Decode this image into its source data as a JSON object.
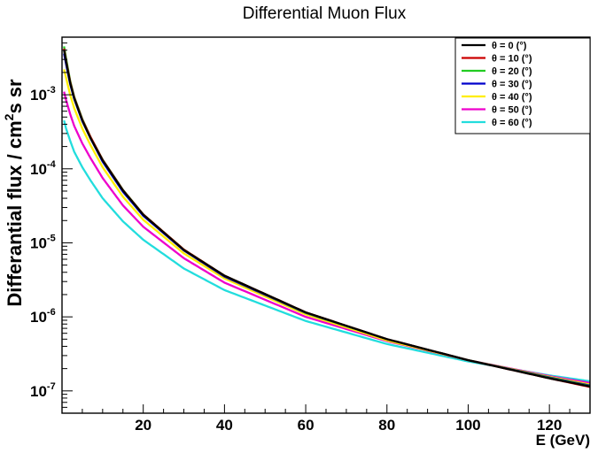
{
  "chart_data": {
    "type": "line",
    "title": "Differential Muon Flux",
    "xlabel": "E (GeV)",
    "ylabel": "Differantial flux / cm²s sr",
    "ylabel_parts": {
      "base": "Differantial flux / cm",
      "sup": "2",
      "tail": "s sr"
    },
    "xlim": [
      0,
      130
    ],
    "ylim": [
      5e-08,
      0.006
    ],
    "yscale": "log",
    "grid": false,
    "legend_position": "top-right",
    "x_ticks": [
      "20",
      "40",
      "60",
      "80",
      "100",
      "120"
    ],
    "y_ticks": [
      {
        "base": "10",
        "exp": "-3"
      },
      {
        "base": "10",
        "exp": "-4"
      },
      {
        "base": "10",
        "exp": "-5"
      },
      {
        "base": "10",
        "exp": "-6"
      },
      {
        "base": "10",
        "exp": "-7"
      }
    ],
    "x": [
      0.5,
      1,
      2,
      3,
      5,
      7,
      10,
      15,
      20,
      30,
      40,
      60,
      80,
      100,
      120,
      130
    ],
    "series": [
      {
        "name": "θ = 0 (°)",
        "color": "#000000",
        "values": [
          0.004,
          0.0028,
          0.00145,
          0.0009,
          0.00045,
          0.00026,
          0.00013,
          5.1e-05,
          2.4e-05,
          8e-06,
          3.6e-06,
          1.15e-06,
          5e-07,
          2.6e-07,
          1.48e-07,
          1.15e-07
        ]
      },
      {
        "name": "θ = 10 (°)",
        "color": "#cc0000",
        "values": [
          0.0042,
          0.0029,
          0.0015,
          0.00092,
          0.00046,
          0.00027,
          0.000132,
          5.15e-05,
          2.42e-05,
          8.1e-06,
          3.6e-06,
          1.15e-06,
          5e-07,
          2.6e-07,
          1.48e-07,
          1.13e-07
        ]
      },
      {
        "name": "θ = 20 (°)",
        "color": "#22cc22",
        "values": [
          0.0045,
          0.0031,
          0.00155,
          0.00094,
          0.00047,
          0.00027,
          0.000133,
          5.2e-05,
          2.42e-05,
          8.1e-06,
          3.6e-06,
          1.14e-06,
          5e-07,
          2.6e-07,
          1.5e-07,
          1.16e-07
        ]
      },
      {
        "name": "θ = 30 (°)",
        "color": "#0000cc",
        "values": [
          0.0036,
          0.0026,
          0.0014,
          0.00088,
          0.00044,
          0.00026,
          0.000125,
          4.9e-05,
          2.32e-05,
          7.9e-06,
          3.5e-06,
          1.13e-06,
          5e-07,
          2.6e-07,
          1.52e-07,
          1.18e-07
        ]
      },
      {
        "name": "θ = 40 (°)",
        "color": "#ffee00",
        "values": [
          0.0022,
          0.0017,
          0.001,
          0.00066,
          0.00035,
          0.00021,
          0.000105,
          4.2e-05,
          2.05e-05,
          7.2e-06,
          3.3e-06,
          1.08e-06,
          4.8e-07,
          2.6e-07,
          1.55e-07,
          1.22e-07
        ]
      },
      {
        "name": "θ = 50 (°)",
        "color": "#ee00cc",
        "values": [
          0.0011,
          0.00085,
          0.00055,
          0.00038,
          0.00022,
          0.00014,
          7.5e-05,
          3.2e-05,
          1.65e-05,
          6.2e-06,
          2.9e-06,
          1e-06,
          4.7e-07,
          2.6e-07,
          1.58e-07,
          1.28e-07
        ]
      },
      {
        "name": "θ = 60 (°)",
        "color": "#22dddd",
        "values": [
          0.00045,
          0.00035,
          0.00024,
          0.00017,
          0.000105,
          7e-05,
          4e-05,
          1.95e-05,
          1.1e-05,
          4.5e-06,
          2.3e-06,
          8.8e-07,
          4.3e-07,
          2.5e-07,
          1.62e-07,
          1.35e-07
        ]
      }
    ]
  }
}
